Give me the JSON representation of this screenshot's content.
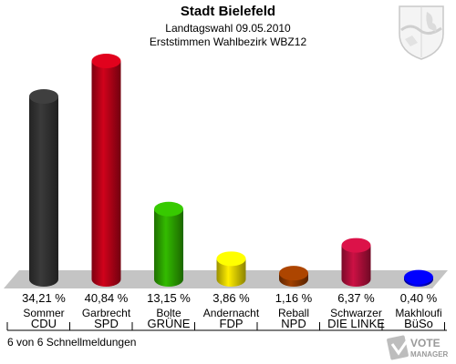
{
  "header": {
    "title": "Stadt Bielefeld",
    "subtitle1": "Landtagswahl 09.05.2010",
    "subtitle2": "Erststimmen Wahlbezirk WBZ12"
  },
  "footer": {
    "status": "6 von 6 Schnellmeldungen"
  },
  "logo": {
    "line1": "VOTE",
    "line2": "MANAGER"
  },
  "chart_data": {
    "type": "bar",
    "categories": [
      "CDU",
      "SPD",
      "GRÜNE",
      "FDP",
      "NPD",
      "DIE LINKE",
      "BüSo"
    ],
    "candidates": [
      "Sommer",
      "Garbrecht",
      "Bolte",
      "Andernacht",
      "Reball",
      "Schwarzer",
      "Makhloufi"
    ],
    "values": [
      34.21,
      40.84,
      13.15,
      3.86,
      1.16,
      6.37,
      0.4
    ],
    "value_labels": [
      "34,21 %",
      "40,84 %",
      "13,15 %",
      "3,86 %",
      "1,16 %",
      "6,37 %",
      "0,40 %"
    ],
    "colors": [
      "#3a3a3a",
      "#d0021b",
      "#33bb00",
      "#ffee00",
      "#a04000",
      "#cc1144",
      "#0000ee"
    ],
    "ylim": [
      0,
      40.84
    ],
    "grid": false
  }
}
